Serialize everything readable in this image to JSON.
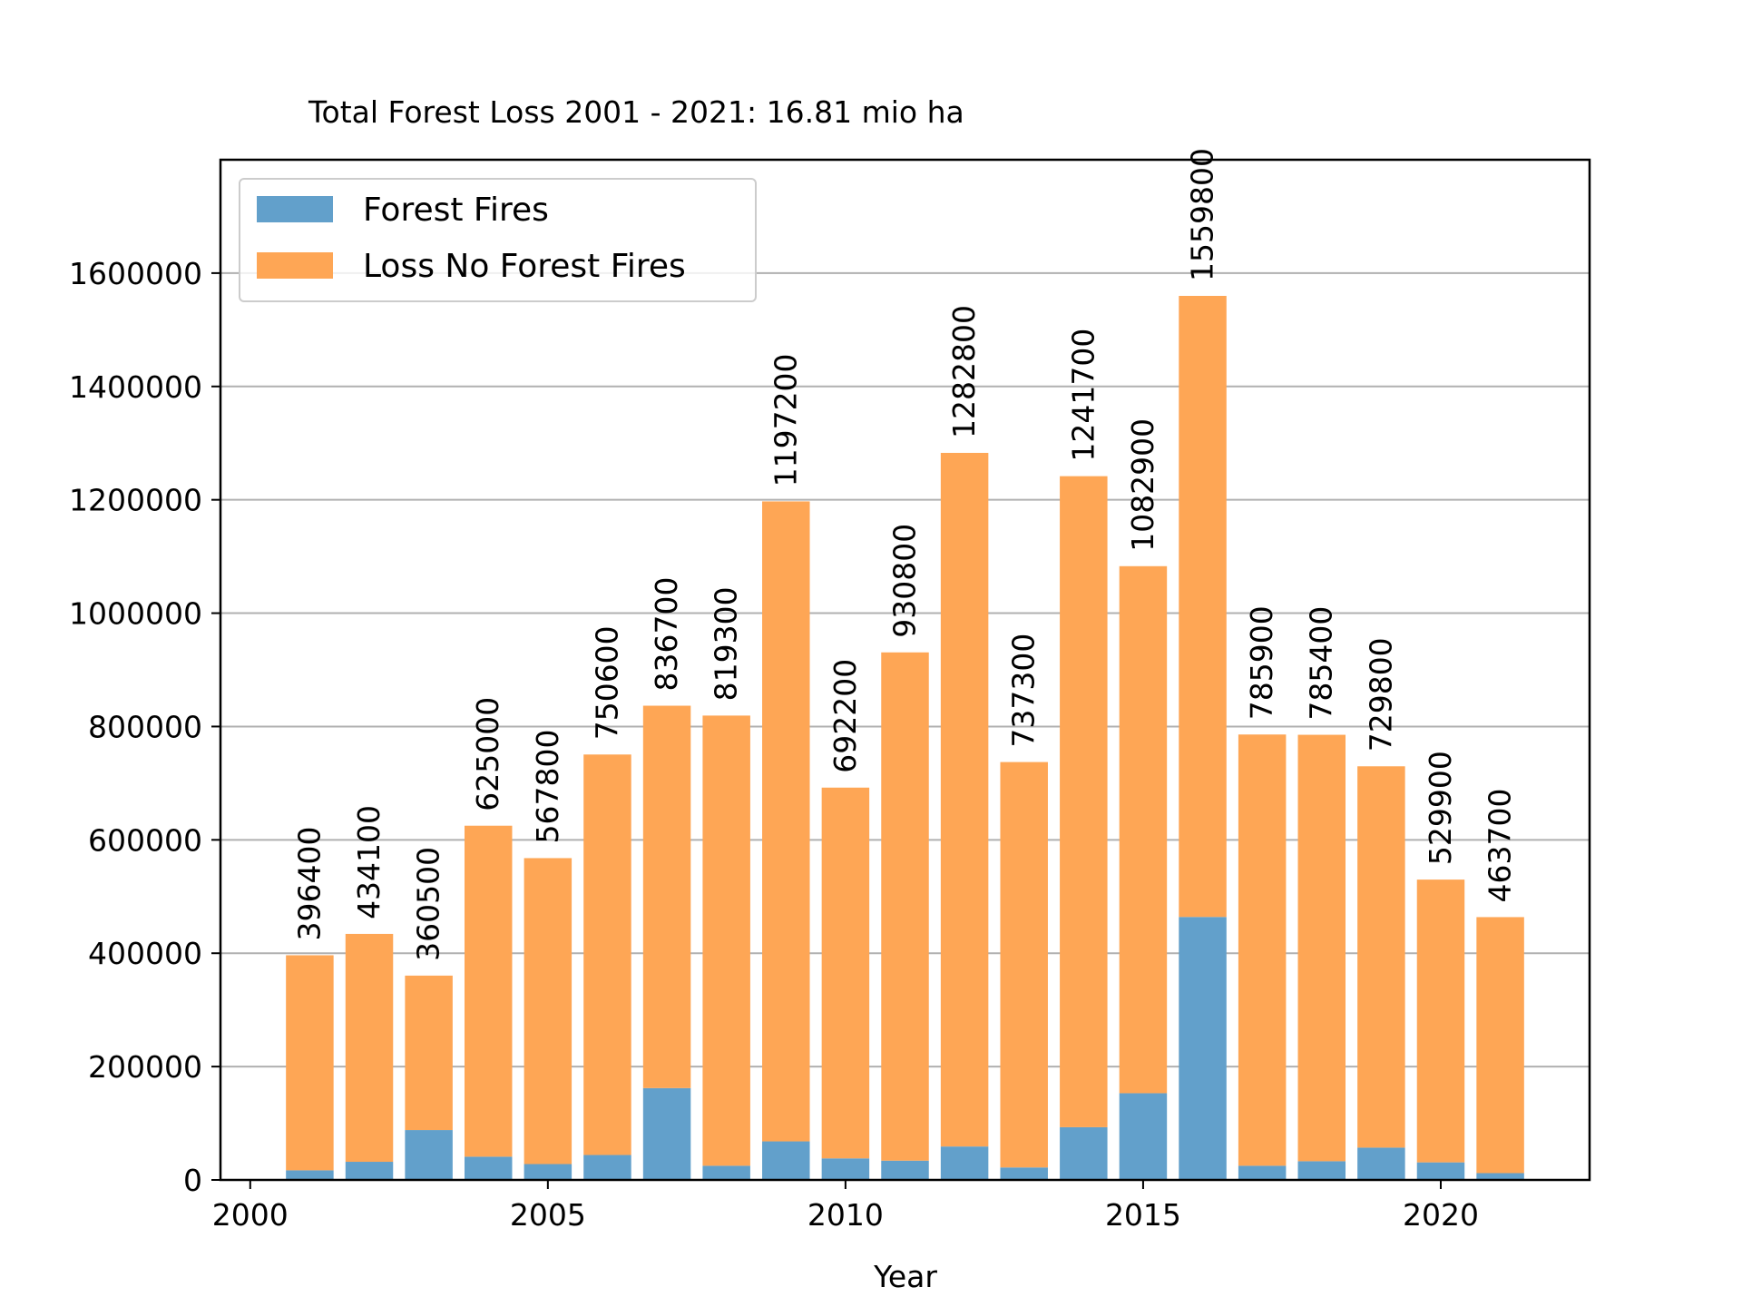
{
  "chart_data": {
    "type": "bar",
    "stacked": true,
    "title": "Total Forest Loss 2001 - 2021: 16.81 mio ha",
    "xlabel": "Year",
    "ylabel": "",
    "xlim": [
      1999.5,
      2022.5
    ],
    "ylim": [
      0,
      1800000
    ],
    "xticks": [
      2000,
      2005,
      2010,
      2015,
      2020
    ],
    "yticks": [
      0,
      200000,
      400000,
      600000,
      800000,
      1000000,
      1200000,
      1400000,
      1600000
    ],
    "grid": "y",
    "legend_position": "top-left",
    "categories": [
      2001,
      2002,
      2003,
      2004,
      2005,
      2006,
      2007,
      2008,
      2009,
      2010,
      2011,
      2012,
      2013,
      2014,
      2015,
      2016,
      2017,
      2018,
      2019,
      2020,
      2021
    ],
    "series": [
      {
        "name": "Forest Fires",
        "color": "#62a0cb",
        "values": [
          17000,
          32000,
          88000,
          41000,
          28000,
          44000,
          162000,
          25000,
          68000,
          38000,
          34000,
          59000,
          22000,
          93000,
          153000,
          464000,
          25000,
          33000,
          57000,
          31000,
          12000
        ]
      },
      {
        "name": "Loss No Forest Fires",
        "color": "#fea655",
        "values": [
          379400,
          402100,
          272500,
          584000,
          539800,
          706600,
          674700,
          794300,
          1129200,
          654200,
          896800,
          1223800,
          715300,
          1148700,
          929900,
          1095800,
          760900,
          752400,
          672800,
          498900,
          451700
        ]
      }
    ],
    "totals": [
      396400,
      434100,
      360500,
      625000,
      567800,
      750600,
      836700,
      819300,
      1197200,
      692200,
      930800,
      1282800,
      737300,
      1241700,
      1082900,
      1559800,
      785900,
      785400,
      729800,
      529900,
      463700
    ],
    "total_labels": [
      "396400",
      "434100",
      "360500",
      "625000",
      "567800",
      "750600",
      "836700",
      "819300",
      "1197200",
      "692200",
      "930800",
      "1282800",
      "737300",
      "1241700",
      "1082900",
      "1559800",
      "785900",
      "785400",
      "729800",
      "529900",
      "463700"
    ],
    "ytick_labels": [
      "0",
      "200000",
      "400000",
      "600000",
      "800000",
      "1000000",
      "1200000",
      "1400000",
      "1600000"
    ],
    "xtick_labels": [
      "2000",
      "2005",
      "2010",
      "2015",
      "2020"
    ],
    "gridline_color": "#b0b0b0"
  }
}
